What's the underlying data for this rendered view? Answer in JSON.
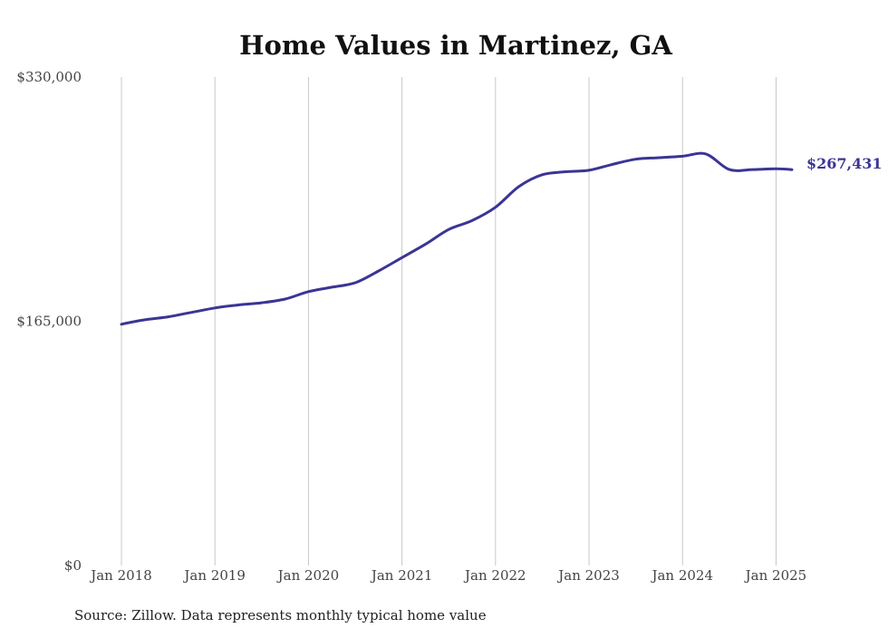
{
  "chart_data": {
    "type": "line",
    "title": "Home Values in Martinez, GA",
    "xlabel": "",
    "ylabel": "",
    "ylim": [
      0,
      330000
    ],
    "y_ticks": [
      "$0",
      "$165,000",
      "$330,000"
    ],
    "y_tick_values": [
      0,
      165000,
      330000
    ],
    "x_ticks": [
      "Jan 2018",
      "Jan 2019",
      "Jan 2020",
      "Jan 2021",
      "Jan 2022",
      "Jan 2023",
      "Jan 2024",
      "Jan 2025"
    ],
    "x_tick_values": [
      2018,
      2019,
      2020,
      2021,
      2022,
      2023,
      2024,
      2025
    ],
    "xlim": [
      2018,
      2025.17
    ],
    "grid": "vertical",
    "series": [
      {
        "color": "#3a3594",
        "end_label": "$267,431",
        "x": [
          2018.0,
          2018.25,
          2018.5,
          2018.75,
          2019.0,
          2019.25,
          2019.5,
          2019.75,
          2020.0,
          2020.25,
          2020.5,
          2020.75,
          2021.0,
          2021.25,
          2021.5,
          2021.75,
          2022.0,
          2022.25,
          2022.5,
          2022.75,
          2023.0,
          2023.25,
          2023.5,
          2023.75,
          2024.0,
          2024.25,
          2024.5,
          2024.75,
          2025.0,
          2025.17
        ],
        "y": [
          163000,
          166000,
          168000,
          171000,
          174000,
          176000,
          177500,
          180000,
          185000,
          188000,
          191000,
          199000,
          208000,
          217000,
          227000,
          233000,
          242000,
          256000,
          264000,
          266000,
          267000,
          271000,
          274500,
          275500,
          276500,
          278000,
          267500,
          267500,
          268000,
          267431
        ]
      }
    ],
    "source": "Source: Zillow. Data represents monthly typical home value"
  }
}
